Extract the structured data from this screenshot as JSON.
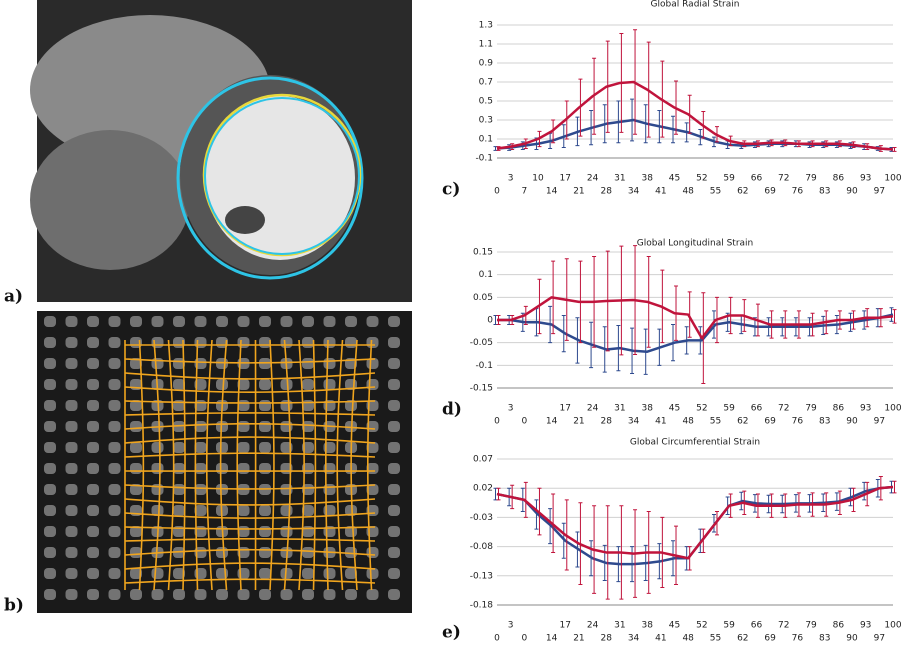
{
  "panel_labels": [
    "a)",
    "b)",
    "c)",
    "d)",
    "e)"
  ],
  "chart_data": [
    {
      "type": "line",
      "title": "Global Radial Strain",
      "categories": [
        0,
        3,
        7,
        10,
        14,
        17,
        21,
        24,
        28,
        31,
        34,
        38,
        41,
        45,
        48,
        52,
        55,
        59,
        62,
        66,
        69,
        72,
        76,
        79,
        83,
        86,
        90,
        93,
        97,
        100
      ],
      "ylim": [
        -0.1,
        1.3
      ],
      "yticks": [
        -0.1,
        0.1,
        0.3,
        0.5,
        0.7,
        0.9,
        1.1,
        1.3
      ],
      "grid": true,
      "series": [
        {
          "color": "#2e4a8e",
          "values": [
            0,
            0.01,
            0.03,
            0.05,
            0.08,
            0.13,
            0.18,
            0.22,
            0.26,
            0.28,
            0.3,
            0.26,
            0.23,
            0.2,
            0.17,
            0.12,
            0.07,
            0.04,
            0.03,
            0.04,
            0.05,
            0.05,
            0.05,
            0.04,
            0.04,
            0.04,
            0.03,
            0.02,
            0,
            -0.01
          ],
          "errors": [
            0.02,
            0.03,
            0.04,
            0.06,
            0.08,
            0.12,
            0.15,
            0.18,
            0.2,
            0.22,
            0.22,
            0.2,
            0.17,
            0.14,
            0.1,
            0.08,
            0.05,
            0.04,
            0.03,
            0.03,
            0.03,
            0.03,
            0.03,
            0.03,
            0.03,
            0.03,
            0.03,
            0.03,
            0.02,
            0.02
          ]
        },
        {
          "color": "#c0143c",
          "values": [
            0,
            0.02,
            0.05,
            0.1,
            0.18,
            0.3,
            0.43,
            0.55,
            0.65,
            0.69,
            0.7,
            0.62,
            0.52,
            0.43,
            0.36,
            0.25,
            0.15,
            0.08,
            0.05,
            0.05,
            0.06,
            0.06,
            0.05,
            0.05,
            0.05,
            0.05,
            0.04,
            0.02,
            0,
            -0.01
          ],
          "errors": [
            0.02,
            0.03,
            0.05,
            0.08,
            0.12,
            0.2,
            0.3,
            0.4,
            0.48,
            0.52,
            0.55,
            0.5,
            0.4,
            0.28,
            0.2,
            0.14,
            0.08,
            0.05,
            0.03,
            0.03,
            0.03,
            0.03,
            0.03,
            0.03,
            0.03,
            0.03,
            0.03,
            0.03,
            0.03,
            0.02
          ]
        }
      ]
    },
    {
      "type": "line",
      "title": "Global Longitudinal Strain",
      "categories": [
        0,
        3,
        0,
        null,
        14,
        17,
        21,
        24,
        28,
        31,
        34,
        38,
        41,
        45,
        48,
        52,
        55,
        59,
        62,
        66,
        69,
        72,
        76,
        79,
        83,
        86,
        90,
        93,
        97,
        100
      ],
      "ylim": [
        -0.15,
        0.15
      ],
      "yticks": [
        -0.15,
        -0.1,
        -0.05,
        0,
        0.05,
        0.1,
        0.15
      ],
      "grid": true,
      "series": [
        {
          "color": "#2e4a8e",
          "values": [
            0,
            0,
            -0.005,
            -0.005,
            -0.01,
            -0.03,
            -0.045,
            -0.055,
            -0.065,
            -0.062,
            -0.068,
            -0.07,
            -0.06,
            -0.05,
            -0.045,
            -0.045,
            -0.01,
            -0.005,
            -0.01,
            -0.015,
            -0.015,
            -0.015,
            -0.015,
            -0.015,
            -0.012,
            -0.01,
            -0.005,
            0,
            0.005,
            0.012
          ],
          "errors": [
            0.01,
            0.01,
            0.02,
            0.03,
            0.04,
            0.04,
            0.05,
            0.05,
            0.05,
            0.05,
            0.05,
            0.05,
            0.04,
            0.04,
            0.03,
            0.03,
            0.03,
            0.02,
            0.02,
            0.02,
            0.02,
            0.02,
            0.02,
            0.02,
            0.02,
            0.02,
            0.02,
            0.02,
            0.02,
            0.015
          ]
        },
        {
          "color": "#c0143c",
          "values": [
            0,
            0,
            0.01,
            0.03,
            0.05,
            0.045,
            0.04,
            0.04,
            0.042,
            0.043,
            0.044,
            0.04,
            0.03,
            0.015,
            0.012,
            -0.04,
            0,
            0.01,
            0.01,
            0,
            -0.01,
            -0.01,
            -0.01,
            -0.01,
            -0.005,
            0,
            0,
            0.005,
            0.005,
            0.008
          ],
          "errors": [
            0.01,
            0.01,
            0.02,
            0.06,
            0.08,
            0.09,
            0.09,
            0.1,
            0.11,
            0.12,
            0.12,
            0.1,
            0.08,
            0.06,
            0.05,
            0.1,
            0.05,
            0.04,
            0.035,
            0.035,
            0.03,
            0.03,
            0.03,
            0.025,
            0.025,
            0.02,
            0.02,
            0.02,
            0.02,
            0.015
          ]
        }
      ]
    },
    {
      "type": "line",
      "title": "Global Circumferential Strain",
      "categories": [
        0,
        3,
        0,
        null,
        14,
        17,
        21,
        24,
        28,
        31,
        34,
        38,
        41,
        45,
        48,
        52,
        55,
        59,
        62,
        66,
        69,
        72,
        76,
        79,
        83,
        86,
        90,
        93,
        97,
        100
      ],
      "ylim": [
        -0.18,
        0.07
      ],
      "yticks": [
        -0.18,
        -0.13,
        -0.08,
        -0.03,
        0.02,
        0.07
      ],
      "grid": true,
      "series": [
        {
          "color": "#2e4a8e",
          "values": [
            0.01,
            0.005,
            0,
            -0.025,
            -0.045,
            -0.07,
            -0.085,
            -0.1,
            -0.108,
            -0.11,
            -0.11,
            -0.108,
            -0.105,
            -0.1,
            -0.1,
            -0.07,
            -0.04,
            -0.01,
            -0.002,
            -0.006,
            -0.007,
            -0.007,
            -0.006,
            -0.006,
            -0.005,
            -0.003,
            0.005,
            0.015,
            0.02,
            0.022
          ],
          "errors": [
            0.01,
            0.015,
            0.02,
            0.025,
            0.03,
            0.03,
            0.03,
            0.03,
            0.03,
            0.03,
            0.03,
            0.03,
            0.03,
            0.03,
            0.02,
            0.02,
            0.015,
            0.015,
            0.015,
            0.015,
            0.015,
            0.015,
            0.015,
            0.015,
            0.015,
            0.015,
            0.015,
            0.015,
            0.015,
            0.01
          ]
        },
        {
          "color": "#c0143c",
          "values": [
            0.01,
            0.005,
            0,
            -0.02,
            -0.04,
            -0.06,
            -0.075,
            -0.085,
            -0.09,
            -0.09,
            -0.092,
            -0.09,
            -0.09,
            -0.095,
            -0.1,
            -0.07,
            -0.04,
            -0.01,
            -0.005,
            -0.01,
            -0.01,
            -0.01,
            -0.008,
            -0.008,
            -0.008,
            -0.005,
            0,
            0.01,
            0.02,
            0.022
          ],
          "errors": [
            0.01,
            0.02,
            0.03,
            0.04,
            0.05,
            0.06,
            0.07,
            0.075,
            0.08,
            0.08,
            0.075,
            0.07,
            0.06,
            0.05,
            0.02,
            0.02,
            0.02,
            0.02,
            0.02,
            0.02,
            0.02,
            0.02,
            0.02,
            0.02,
            0.02,
            0.02,
            0.02,
            0.02,
            0.02,
            0.01
          ]
        }
      ]
    }
  ]
}
